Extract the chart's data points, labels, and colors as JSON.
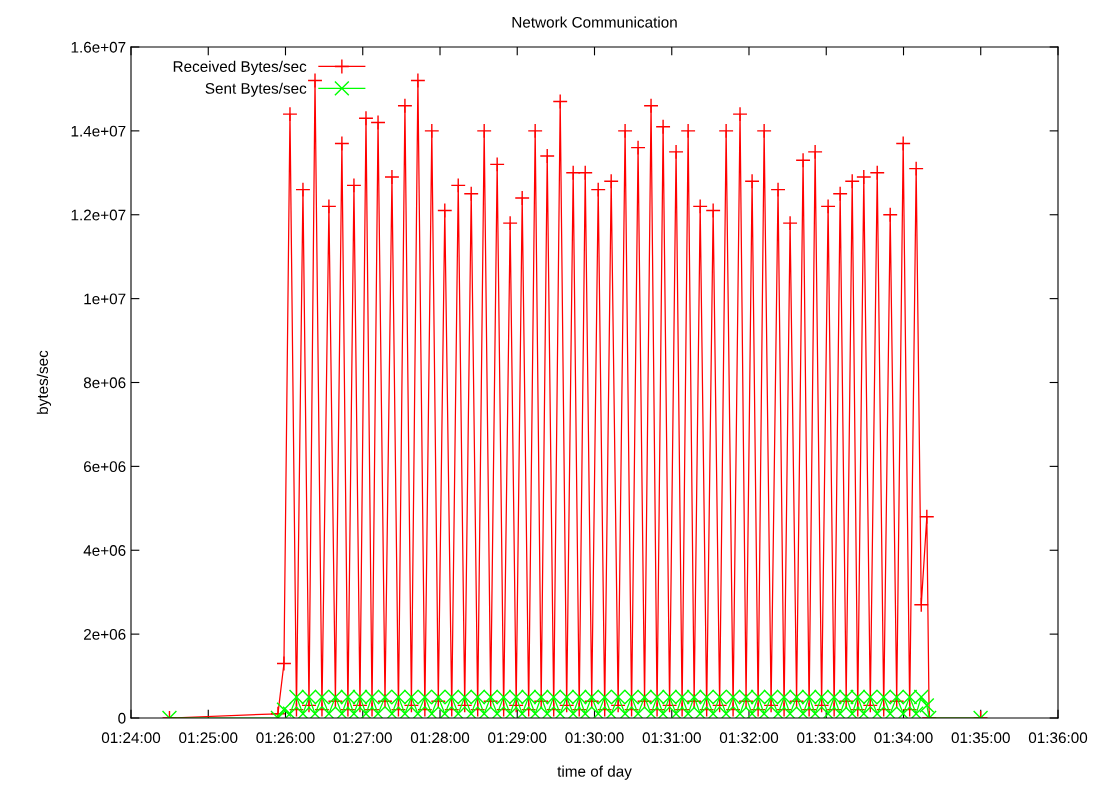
{
  "chart_data": {
    "type": "line",
    "title": "Network Communication",
    "xlabel": "time of day",
    "ylabel": "bytes/sec",
    "x": [
      1.4083,
      1.4317,
      1.433,
      1.4343,
      1.4357,
      1.4371,
      1.4384,
      1.4397,
      1.4412,
      1.4427,
      1.4441,
      1.4455,
      1.4468,
      1.4481,
      1.4494,
      1.4507,
      1.452,
      1.4533,
      1.4548,
      1.4563,
      1.4577,
      1.4591,
      1.4605,
      1.4619,
      1.4634,
      1.4649,
      1.4663,
      1.4677,
      1.4692,
      1.4706,
      1.472,
      1.4734,
      1.4748,
      1.4762,
      1.4776,
      1.479,
      1.4804,
      1.4818,
      1.4831,
      1.4844,
      1.4858,
      1.4872,
      1.4885,
      1.4898,
      1.4912,
      1.4926,
      1.494,
      1.4954,
      1.4967,
      1.498,
      1.4994,
      1.5008,
      1.5022,
      1.5036,
      1.5051,
      1.5066,
      1.508,
      1.5094,
      1.5108,
      1.5122,
      1.5135,
      1.5148,
      1.5162,
      1.5176,
      1.5189,
      1.5202,
      1.5215,
      1.5228,
      1.5242,
      1.5256,
      1.527,
      1.5284,
      1.5299,
      1.5314,
      1.5327,
      1.534,
      1.5353,
      1.5366,
      1.5381,
      1.5396,
      1.5409,
      1.5422,
      1.5436,
      1.545,
      1.5463,
      1.5476,
      1.549,
      1.5504,
      1.5517,
      1.553,
      1.5543,
      1.5556,
      1.5568,
      1.5581,
      1.5595,
      1.561,
      1.5624,
      1.5638,
      1.5652,
      1.5666,
      1.568,
      1.5694,
      1.5705,
      1.5717,
      1.5722,
      1.5833
    ],
    "series": [
      {
        "name": "Received Bytes/sec",
        "color": "#ff0000",
        "marker": "cross",
        "values": [
          0,
          100000,
          1300000,
          14400000,
          200000,
          12600000,
          300000,
          15200000,
          200000,
          12200000,
          400000,
          13700000,
          200000,
          12700000,
          300000,
          14300000,
          200000,
          14200000,
          400000,
          12900000,
          200000,
          14600000,
          300000,
          15200000,
          200000,
          14000000,
          400000,
          12100000,
          200000,
          12700000,
          300000,
          12500000,
          200000,
          14000000,
          400000,
          13200000,
          200000,
          11800000,
          300000,
          12400000,
          200000,
          14000000,
          400000,
          13400000,
          200000,
          14700000,
          300000,
          13000000,
          200000,
          13000000,
          400000,
          12600000,
          200000,
          12800000,
          300000,
          14000000,
          200000,
          13600000,
          400000,
          14600000,
          200000,
          14100000,
          300000,
          13500000,
          200000,
          14000000,
          400000,
          12200000,
          200000,
          12100000,
          300000,
          14000000,
          200000,
          14400000,
          400000,
          12800000,
          200000,
          14000000,
          300000,
          12600000,
          200000,
          11800000,
          400000,
          13300000,
          200000,
          13500000,
          300000,
          12200000,
          200000,
          12500000,
          400000,
          12800000,
          200000,
          12900000,
          300000,
          13000000,
          200000,
          12000000,
          400000,
          13700000,
          200000,
          13100000,
          2700000,
          4800000,
          0,
          0
        ]
      },
      {
        "name": "Sent Bytes/sec",
        "color": "#00ff00",
        "marker": "x",
        "values": [
          0,
          0,
          200000,
          100000,
          500000,
          100000,
          500000,
          100000,
          500000,
          100000,
          500000,
          100000,
          500000,
          100000,
          500000,
          100000,
          500000,
          100000,
          500000,
          100000,
          500000,
          100000,
          500000,
          100000,
          500000,
          100000,
          500000,
          100000,
          500000,
          100000,
          500000,
          100000,
          500000,
          100000,
          500000,
          100000,
          500000,
          100000,
          500000,
          100000,
          500000,
          100000,
          500000,
          100000,
          500000,
          100000,
          500000,
          100000,
          500000,
          100000,
          500000,
          100000,
          500000,
          100000,
          500000,
          100000,
          500000,
          100000,
          500000,
          100000,
          500000,
          100000,
          500000,
          100000,
          500000,
          100000,
          500000,
          100000,
          500000,
          100000,
          500000,
          100000,
          500000,
          100000,
          500000,
          100000,
          500000,
          100000,
          500000,
          100000,
          500000,
          100000,
          500000,
          100000,
          500000,
          100000,
          500000,
          100000,
          500000,
          100000,
          500000,
          100000,
          500000,
          100000,
          500000,
          100000,
          500000,
          100000,
          500000,
          100000,
          500000,
          100000,
          500000,
          300000,
          0,
          0
        ]
      }
    ],
    "xlim": [
      1.4,
      1.6
    ],
    "xticks": [
      {
        "value": 1.4,
        "label": "01:24:00"
      },
      {
        "value": 1.41667,
        "label": "01:25:00"
      },
      {
        "value": 1.43333,
        "label": "01:26:00"
      },
      {
        "value": 1.45,
        "label": "01:27:00"
      },
      {
        "value": 1.46667,
        "label": "01:28:00"
      },
      {
        "value": 1.48333,
        "label": "01:29:00"
      },
      {
        "value": 1.5,
        "label": "01:30:00"
      },
      {
        "value": 1.51667,
        "label": "01:31:00"
      },
      {
        "value": 1.53333,
        "label": "01:32:00"
      },
      {
        "value": 1.55,
        "label": "01:33:00"
      },
      {
        "value": 1.56667,
        "label": "01:34:00"
      },
      {
        "value": 1.58333,
        "label": "01:35:00"
      },
      {
        "value": 1.6,
        "label": "01:36:00"
      }
    ],
    "ylim": [
      0,
      16000000
    ],
    "yticks": [
      0,
      {
        "value": 2000000,
        "label": "2e+06"
      },
      {
        "value": 4000000,
        "label": "4e+06"
      },
      {
        "value": 6000000,
        "label": "6e+06"
      },
      {
        "value": 8000000,
        "label": "8e+06"
      },
      {
        "value": 10000000,
        "label": "1e+07"
      },
      {
        "value": 12000000,
        "label": "1.2e+07"
      },
      {
        "value": 14000000,
        "label": "1.4e+07"
      },
      {
        "value": 16000000,
        "label": "1.6e+07"
      }
    ],
    "legend": "top left",
    "grid": false
  }
}
